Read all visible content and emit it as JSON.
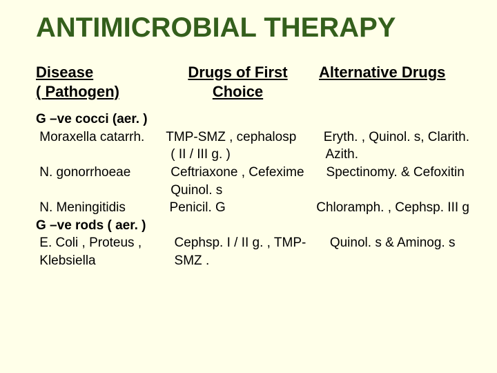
{
  "background_color": "#ffffe9",
  "title": {
    "text": "ANTIMICROBIAL THERAPY",
    "color": "#345f1c",
    "fontsize": 40,
    "fontweight": "bold"
  },
  "headers": {
    "col1_line1": "Disease",
    "col1_line2": "( Pathogen)",
    "col2_line1": "Drugs of First",
    "col2_line2": "Choice",
    "col3": "Alternative Drugs",
    "fontsize": 22,
    "fontweight": "bold",
    "underline": true
  },
  "body": {
    "fontsize": 19,
    "text_color": "#000000",
    "rows": [
      {
        "c1": "G –ve cocci (aer. )",
        "c2": "",
        "c3": "",
        "bold_c1": true
      },
      {
        "c1": " Moraxella catarrh.",
        "c2": "TMP-SMZ , cephalosp",
        "c3": "  Eryth. , Quinol. s, Clarith."
      },
      {
        "c1": "",
        "c2": " ( II / III g. )",
        "c3": "  Azith."
      },
      {
        "c1": " N. gonorrhoeae",
        "c2": " Ceftriaxone , Cefexime",
        "c3": "  Spectinomy. & Cefoxitin"
      },
      {
        "c1": "",
        "c2": " Quinol. s",
        "c3": ""
      },
      {
        "c1": " N. Meningitidis",
        "c2": " Penicil. G",
        "c3": "Chloramph. , Cephsp. III g"
      },
      {
        "c1": "G –ve rods ( aer. )",
        "c2": "",
        "c3": "",
        "bold_c1": true
      },
      {
        "c1": " E. Coli , Proteus ,",
        "c2": "  Cephsp. I / II g. , TMP-",
        "c3": "   Quinol. s & Aminog. s"
      },
      {
        "c1": " Klebsiella",
        "c2": "  SMZ .",
        "c3": ""
      }
    ]
  }
}
